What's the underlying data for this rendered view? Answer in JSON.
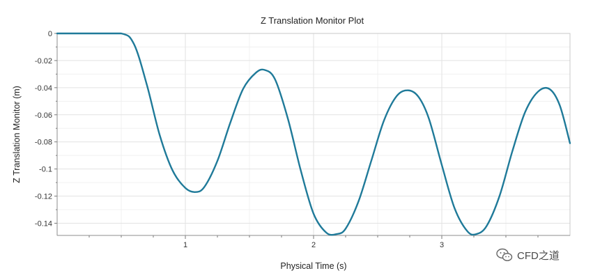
{
  "chart_data": {
    "type": "line",
    "title": "Z Translation Monitor Plot",
    "xlabel": "Physical Time (s)",
    "ylabel": "Z Translation Monitor (m)",
    "xlim": [
      0,
      4.0
    ],
    "ylim": [
      -0.149,
      0
    ],
    "xticks": [
      1,
      2,
      3
    ],
    "yticks": [
      0,
      -0.02,
      -0.04,
      -0.06,
      -0.08,
      -0.1,
      -0.12,
      -0.14
    ],
    "xtick_labels": [
      "1",
      "2",
      "3"
    ],
    "ytick_labels": [
      "0",
      "-0.02",
      "-0.04",
      "-0.06",
      "-0.08",
      "-0.1",
      "-0.12",
      "-0.14"
    ],
    "grid": true,
    "series": [
      {
        "color": "#1f7a99",
        "x": [
          0,
          0.25,
          0.5,
          0.6,
          0.7,
          0.8,
          0.9,
          1.0,
          1.08,
          1.15,
          1.25,
          1.35,
          1.45,
          1.55,
          1.62,
          1.7,
          1.8,
          1.9,
          2.0,
          2.1,
          2.18,
          2.25,
          2.35,
          2.45,
          2.55,
          2.65,
          2.74,
          2.82,
          2.9,
          3.0,
          3.1,
          3.2,
          3.27,
          3.35,
          3.45,
          3.55,
          3.65,
          3.75,
          3.84,
          3.92,
          4.0
        ],
        "y": [
          0,
          0,
          0,
          -0.008,
          -0.038,
          -0.075,
          -0.101,
          -0.114,
          -0.117,
          -0.113,
          -0.094,
          -0.066,
          -0.041,
          -0.029,
          -0.027,
          -0.034,
          -0.063,
          -0.101,
          -0.133,
          -0.147,
          -0.148,
          -0.144,
          -0.124,
          -0.094,
          -0.064,
          -0.046,
          -0.042,
          -0.047,
          -0.063,
          -0.097,
          -0.129,
          -0.146,
          -0.148,
          -0.142,
          -0.12,
          -0.087,
          -0.058,
          -0.043,
          -0.041,
          -0.053,
          -0.081
        ]
      }
    ]
  },
  "watermark": {
    "icon": "wechat-icon",
    "text": "CFD之道"
  }
}
